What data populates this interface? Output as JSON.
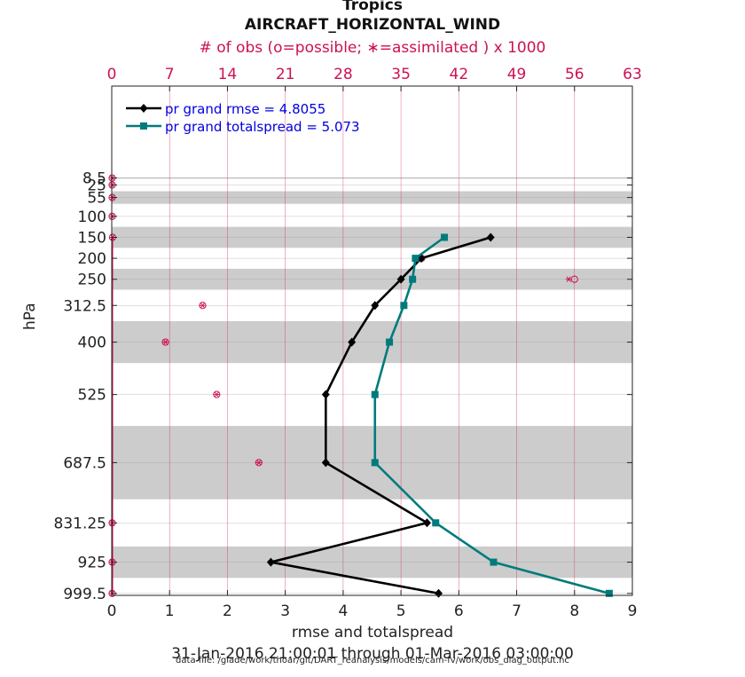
{
  "chart_data": {
    "type": "line",
    "title": "Tropics",
    "subtitle": "AIRCRAFT_HORIZONTAL_WIND",
    "top_axis_label": "# of obs (o=possible; ∗=assimilated ) x 1000",
    "xlabel": "rmse and totalspread",
    "ylabel": "hPa",
    "date_range": "31-Jan-2016 21:00:01 through 01-Mar-2016 03:00:00",
    "data_file": "data file: /glade/work/thoar/git/DART_reanalysis/models/cam-fv/work/obs_diag_output.nc",
    "xlim": [
      0,
      9
    ],
    "xticks": [
      0,
      1,
      2,
      3,
      4,
      5,
      6,
      7,
      8,
      9
    ],
    "top_xlim": [
      0,
      63
    ],
    "top_xticks": [
      0,
      7,
      14,
      21,
      28,
      35,
      42,
      49,
      56,
      63
    ],
    "levels": [
      "8.5",
      "25",
      "55",
      "100",
      "150",
      "200",
      "250",
      "312.5",
      "400",
      "525",
      "687.5",
      "831.25",
      "925",
      "999.5"
    ],
    "level_values": [
      8.5,
      25,
      55,
      100,
      150,
      200,
      250,
      312.5,
      400,
      525,
      687.5,
      831.25,
      925,
      999.5
    ],
    "shaded_bands": [
      [
        7,
        10
      ],
      [
        40,
        70
      ],
      [
        125,
        175
      ],
      [
        225,
        275
      ],
      [
        350,
        450
      ],
      [
        600,
        775
      ],
      [
        887.5,
        962.5
      ]
    ],
    "legend": {
      "location": "top-left"
    },
    "series": [
      {
        "name": "pr grand rmse = 4.8055",
        "color": "#000000",
        "marker": "diamond",
        "levels": [
          150,
          200,
          250,
          312.5,
          400,
          525,
          687.5,
          831.25,
          925,
          999.5
        ],
        "values": [
          6.55,
          5.35,
          5.0,
          4.55,
          4.15,
          3.7,
          3.7,
          5.45,
          2.75,
          5.65
        ]
      },
      {
        "name": "pr grand totalspread = 5.073",
        "color": "#007b7b",
        "marker": "square",
        "levels": [
          150,
          200,
          250,
          312.5,
          400,
          525,
          687.5,
          831.25,
          925,
          999.5
        ],
        "values": [
          5.75,
          5.25,
          5.2,
          5.05,
          4.8,
          4.55,
          4.55,
          5.6,
          6.6,
          8.6
        ]
      }
    ],
    "obs_counts_thousands": {
      "levels": [
        8.5,
        25,
        55,
        100,
        150,
        200,
        250,
        312.5,
        400,
        525,
        687.5,
        831.25,
        925,
        999.5
      ],
      "possible": [
        0.05,
        0.05,
        0.05,
        0.05,
        0.1,
        37.5,
        56.0,
        11.0,
        6.5,
        12.7,
        17.8,
        0.05,
        0.05,
        0.05
      ],
      "assimilated": [
        0.05,
        0.05,
        0.05,
        0.05,
        0.1,
        37.0,
        55.3,
        11.0,
        6.5,
        12.7,
        17.8,
        0.05,
        0.05,
        0.05
      ]
    },
    "colors": {
      "obs": "#cc1155",
      "band": "#cccccc",
      "legend_text": "#0000dd",
      "grid_top": "#cc1155"
    }
  }
}
